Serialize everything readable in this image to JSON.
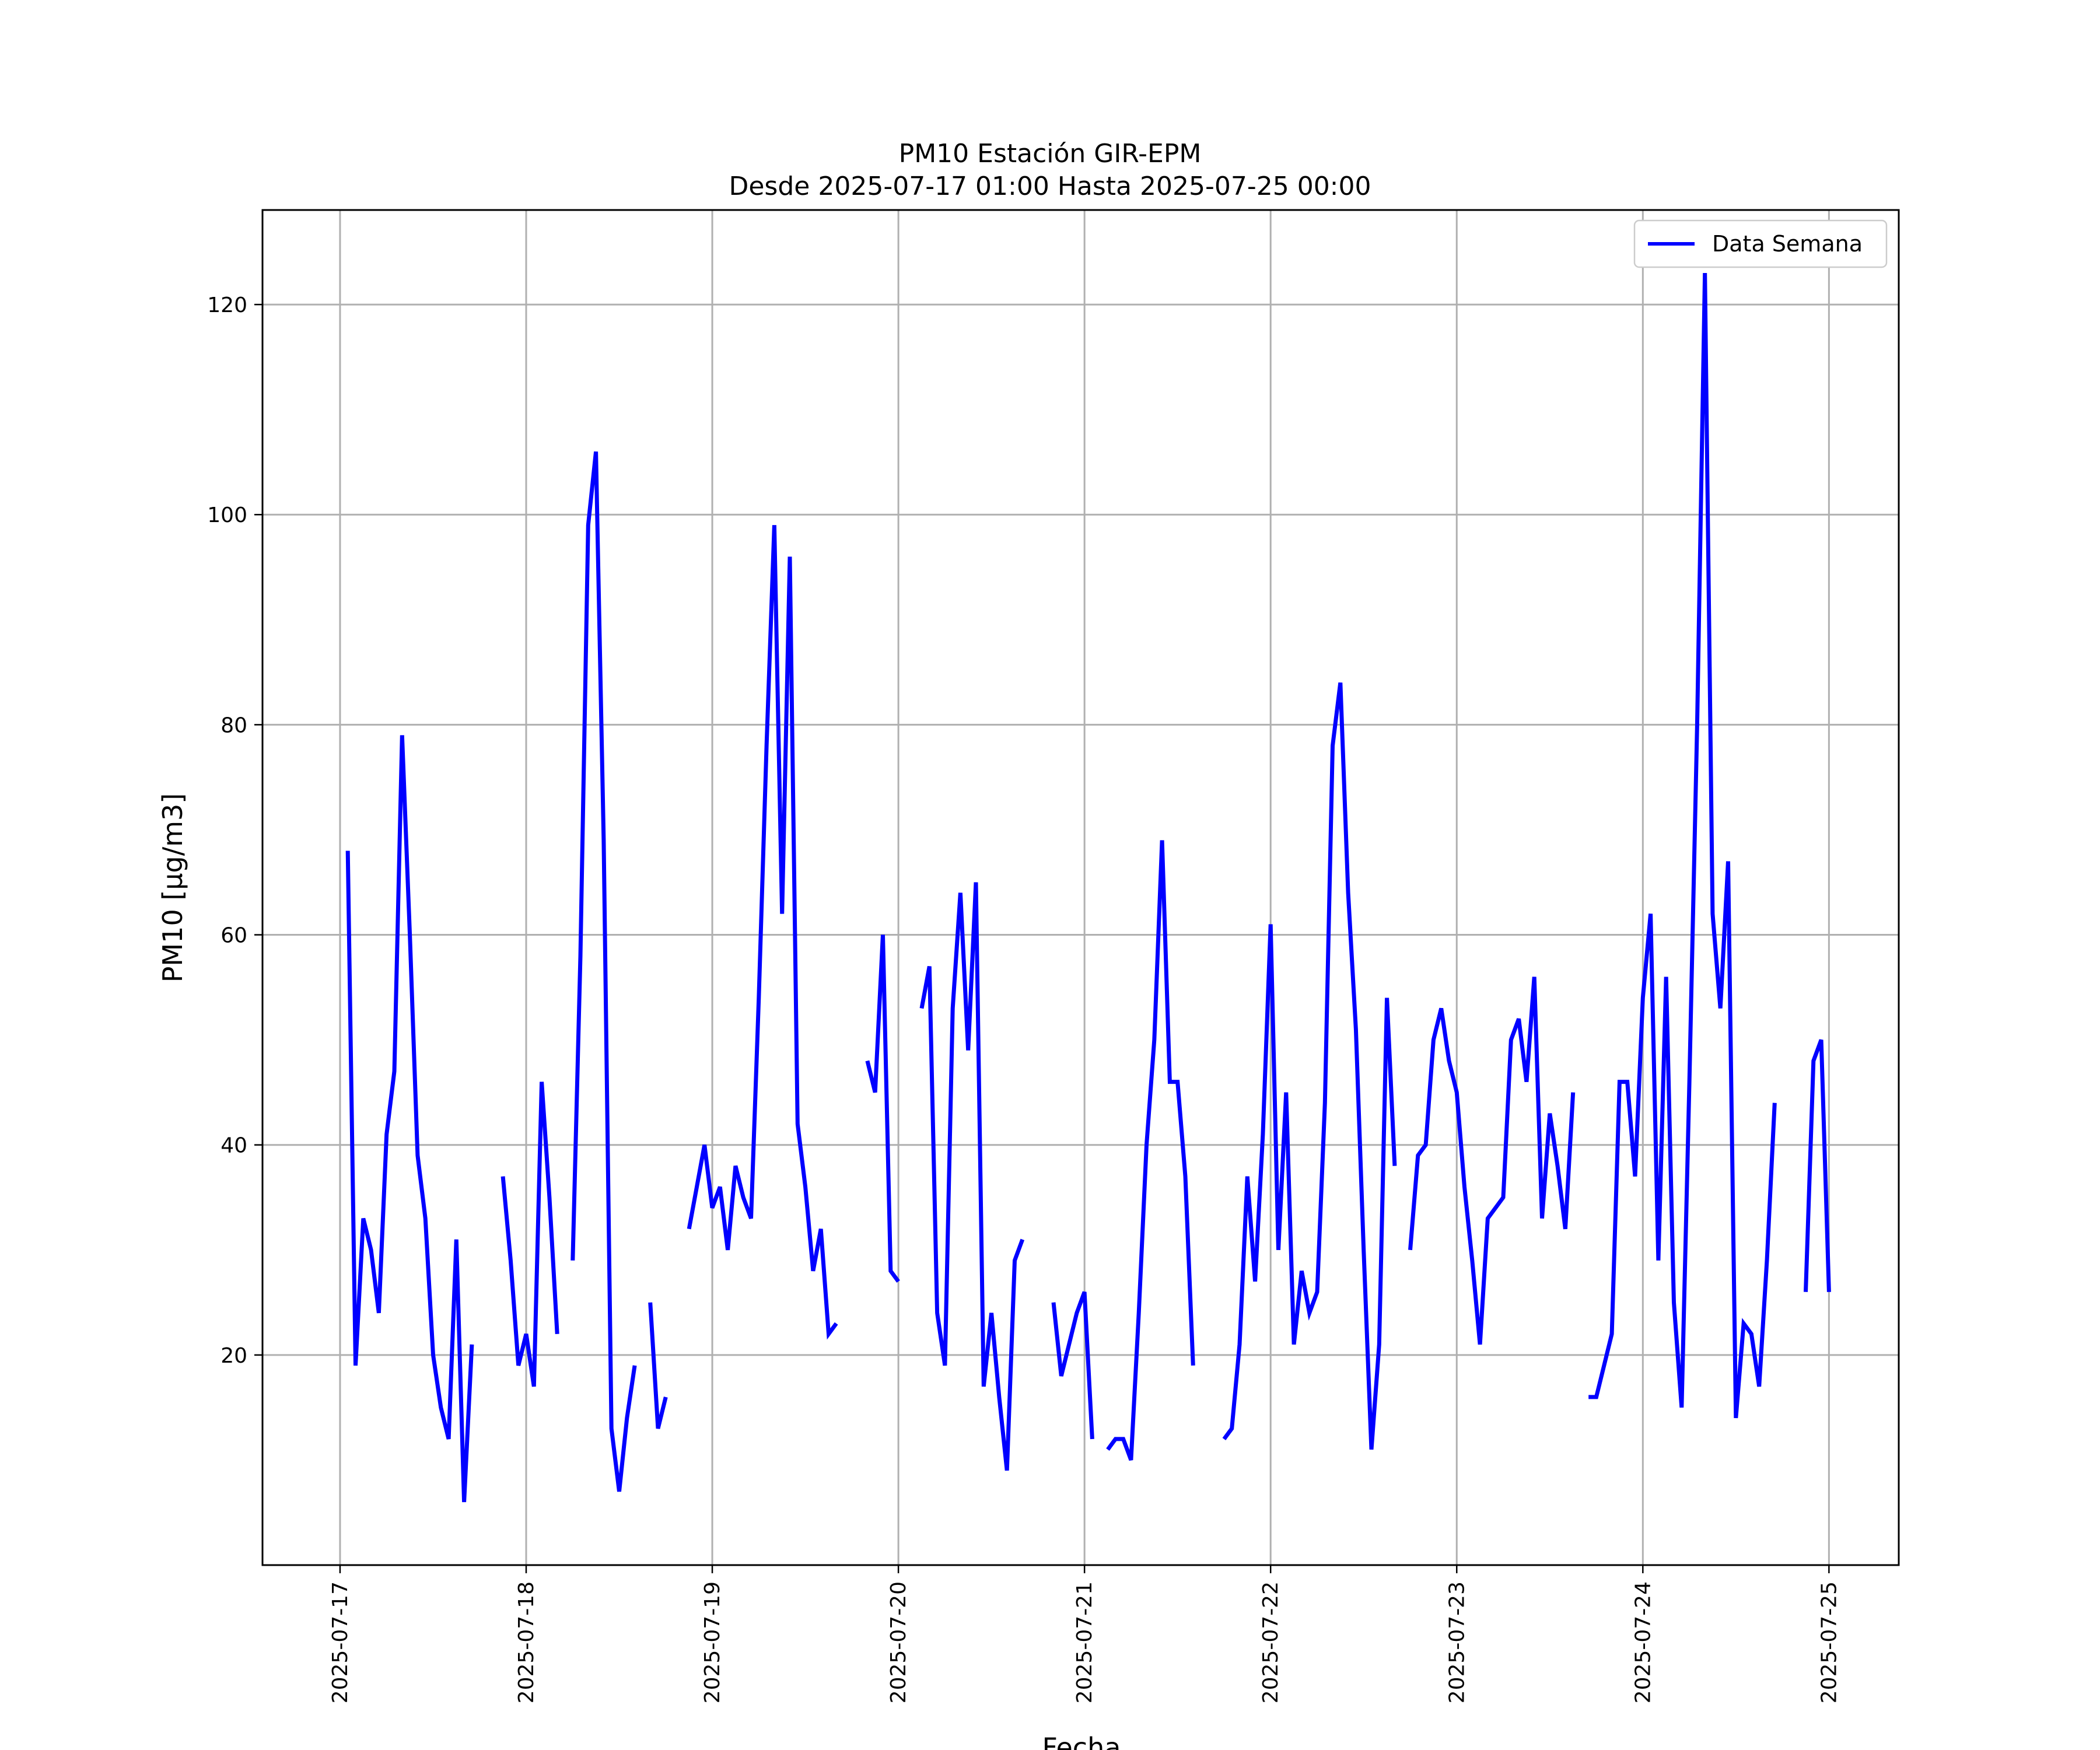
{
  "chart_data": {
    "type": "line",
    "title": "PM10 Estación GIR-EPM",
    "subtitle": "Desde 2025-07-17 01:00 Hasta 2025-07-25 00:00",
    "xlabel": "Fecha",
    "ylabel": "PM10 [μg/m3]",
    "ylim": [
      0,
      129
    ],
    "xlim": [
      "2025-07-16 14:00",
      "2025-07-25 09:00"
    ],
    "x_ticks": [
      "2025-07-17",
      "2025-07-18",
      "2025-07-19",
      "2025-07-20",
      "2025-07-21",
      "2025-07-22",
      "2025-07-23",
      "2025-07-24",
      "2025-07-25"
    ],
    "y_ticks": [
      20,
      40,
      60,
      80,
      100,
      120
    ],
    "grid": true,
    "legend": {
      "position": "top-right",
      "entries": [
        "Data Semana"
      ]
    },
    "series": [
      {
        "name": "Data Semana",
        "color": "#0000ff",
        "segments": [
          [
            [
              "2025-07-17 01:00",
              68
            ],
            [
              "2025-07-17 02:00",
              19
            ],
            [
              "2025-07-17 03:00",
              33
            ],
            [
              "2025-07-17 04:00",
              30
            ],
            [
              "2025-07-17 05:00",
              24
            ],
            [
              "2025-07-17 06:00",
              41
            ],
            [
              "2025-07-17 07:00",
              47
            ],
            [
              "2025-07-17 08:00",
              79
            ],
            [
              "2025-07-17 09:00",
              60
            ],
            [
              "2025-07-17 10:00",
              39
            ],
            [
              "2025-07-17 11:00",
              33
            ],
            [
              "2025-07-17 12:00",
              20
            ],
            [
              "2025-07-17 13:00",
              15
            ],
            [
              "2025-07-17 14:00",
              12
            ],
            [
              "2025-07-17 15:00",
              31
            ],
            [
              "2025-07-17 16:00",
              6
            ],
            [
              "2025-07-17 17:00",
              21
            ]
          ],
          [
            [
              "2025-07-17 21:00",
              37
            ],
            [
              "2025-07-17 22:00",
              29
            ],
            [
              "2025-07-17 23:00",
              19
            ],
            [
              "2025-07-18 00:00",
              22
            ],
            [
              "2025-07-18 01:00",
              17
            ],
            [
              "2025-07-18 02:00",
              46
            ],
            [
              "2025-07-18 03:00",
              35
            ],
            [
              "2025-07-18 04:00",
              22
            ]
          ],
          [
            [
              "2025-07-18 06:00",
              29
            ],
            [
              "2025-07-18 07:00",
              58
            ],
            [
              "2025-07-18 08:00",
              99
            ],
            [
              "2025-07-18 09:00",
              106
            ],
            [
              "2025-07-18 10:00",
              69
            ],
            [
              "2025-07-18 11:00",
              13
            ],
            [
              "2025-07-18 12:00",
              7
            ],
            [
              "2025-07-18 13:00",
              14
            ],
            [
              "2025-07-18 14:00",
              19
            ]
          ],
          [
            [
              "2025-07-18 16:00",
              25
            ],
            [
              "2025-07-18 17:00",
              13
            ],
            [
              "2025-07-18 18:00",
              16
            ]
          ],
          [
            [
              "2025-07-18 21:00",
              32
            ],
            [
              "2025-07-18 22:00",
              36
            ],
            [
              "2025-07-18 23:00",
              40
            ],
            [
              "2025-07-19 00:00",
              34
            ],
            [
              "2025-07-19 01:00",
              36
            ],
            [
              "2025-07-19 02:00",
              30
            ],
            [
              "2025-07-19 03:00",
              38
            ],
            [
              "2025-07-19 04:00",
              35
            ],
            [
              "2025-07-19 05:00",
              33
            ],
            [
              "2025-07-19 06:00",
              54
            ],
            [
              "2025-07-19 07:00",
              78
            ],
            [
              "2025-07-19 08:00",
              99
            ],
            [
              "2025-07-19 09:00",
              62
            ],
            [
              "2025-07-19 10:00",
              96
            ],
            [
              "2025-07-19 11:00",
              42
            ],
            [
              "2025-07-19 12:00",
              36
            ],
            [
              "2025-07-19 13:00",
              28
            ],
            [
              "2025-07-19 14:00",
              32
            ],
            [
              "2025-07-19 15:00",
              22
            ],
            [
              "2025-07-19 16:00",
              23
            ]
          ],
          [
            [
              "2025-07-19 20:00",
              48
            ],
            [
              "2025-07-19 21:00",
              45
            ],
            [
              "2025-07-19 22:00",
              60
            ],
            [
              "2025-07-19 23:00",
              28
            ],
            [
              "2025-07-20 00:00",
              27
            ]
          ],
          [
            [
              "2025-07-20 03:00",
              53
            ],
            [
              "2025-07-20 04:00",
              57
            ],
            [
              "2025-07-20 05:00",
              24
            ],
            [
              "2025-07-20 06:00",
              19
            ],
            [
              "2025-07-20 07:00",
              53
            ],
            [
              "2025-07-20 08:00",
              64
            ],
            [
              "2025-07-20 09:00",
              49
            ],
            [
              "2025-07-20 10:00",
              65
            ],
            [
              "2025-07-20 11:00",
              17
            ],
            [
              "2025-07-20 12:00",
              24
            ],
            [
              "2025-07-20 13:00",
              16
            ],
            [
              "2025-07-20 14:00",
              9
            ],
            [
              "2025-07-20 15:00",
              29
            ],
            [
              "2025-07-20 16:00",
              31
            ]
          ],
          [
            [
              "2025-07-20 20:00",
              25
            ],
            [
              "2025-07-20 21:00",
              18
            ],
            [
              "2025-07-20 22:00",
              21
            ],
            [
              "2025-07-20 23:00",
              24
            ],
            [
              "2025-07-21 00:00",
              26
            ],
            [
              "2025-07-21 01:00",
              12
            ]
          ],
          [
            [
              "2025-07-21 03:00",
              11
            ],
            [
              "2025-07-21 04:00",
              12
            ],
            [
              "2025-07-21 05:00",
              12
            ],
            [
              "2025-07-21 06:00",
              10
            ],
            [
              "2025-07-21 07:00",
              24
            ],
            [
              "2025-07-21 08:00",
              40
            ],
            [
              "2025-07-21 09:00",
              50
            ],
            [
              "2025-07-21 10:00",
              69
            ],
            [
              "2025-07-21 11:00",
              46
            ],
            [
              "2025-07-21 12:00",
              46
            ],
            [
              "2025-07-21 13:00",
              37
            ],
            [
              "2025-07-21 14:00",
              19
            ]
          ],
          [
            [
              "2025-07-21 18:00",
              12
            ],
            [
              "2025-07-21 19:00",
              13
            ],
            [
              "2025-07-21 20:00",
              21
            ],
            [
              "2025-07-21 21:00",
              37
            ],
            [
              "2025-07-21 22:00",
              27
            ],
            [
              "2025-07-21 23:00",
              41
            ],
            [
              "2025-07-22 00:00",
              61
            ],
            [
              "2025-07-22 01:00",
              30
            ],
            [
              "2025-07-22 02:00",
              45
            ],
            [
              "2025-07-22 03:00",
              21
            ],
            [
              "2025-07-22 04:00",
              28
            ],
            [
              "2025-07-22 05:00",
              24
            ],
            [
              "2025-07-22 06:00",
              26
            ],
            [
              "2025-07-22 07:00",
              44
            ],
            [
              "2025-07-22 08:00",
              78
            ],
            [
              "2025-07-22 09:00",
              84
            ],
            [
              "2025-07-22 10:00",
              64
            ],
            [
              "2025-07-22 11:00",
              51
            ],
            [
              "2025-07-22 12:00",
              30
            ],
            [
              "2025-07-22 13:00",
              11
            ],
            [
              "2025-07-22 14:00",
              21
            ],
            [
              "2025-07-22 15:00",
              54
            ],
            [
              "2025-07-22 16:00",
              38
            ]
          ],
          [
            [
              "2025-07-22 18:00",
              30
            ],
            [
              "2025-07-22 19:00",
              39
            ],
            [
              "2025-07-22 20:00",
              40
            ],
            [
              "2025-07-22 21:00",
              50
            ],
            [
              "2025-07-22 22:00",
              53
            ],
            [
              "2025-07-22 23:00",
              48
            ],
            [
              "2025-07-23 00:00",
              45
            ],
            [
              "2025-07-23 01:00",
              36
            ],
            [
              "2025-07-23 02:00",
              29
            ],
            [
              "2025-07-23 03:00",
              21
            ],
            [
              "2025-07-23 04:00",
              33
            ],
            [
              "2025-07-23 05:00",
              34
            ],
            [
              "2025-07-23 06:00",
              35
            ],
            [
              "2025-07-23 07:00",
              50
            ],
            [
              "2025-07-23 08:00",
              52
            ],
            [
              "2025-07-23 09:00",
              46
            ],
            [
              "2025-07-23 10:00",
              56
            ],
            [
              "2025-07-23 11:00",
              33
            ],
            [
              "2025-07-23 12:00",
              43
            ],
            [
              "2025-07-23 13:00",
              38
            ],
            [
              "2025-07-23 14:00",
              32
            ],
            [
              "2025-07-23 15:00",
              45
            ]
          ],
          [
            [
              "2025-07-23 17:00",
              16
            ],
            [
              "2025-07-23 18:00",
              16
            ],
            [
              "2025-07-23 19:00",
              19
            ],
            [
              "2025-07-23 20:00",
              22
            ],
            [
              "2025-07-23 21:00",
              46
            ],
            [
              "2025-07-23 22:00",
              46
            ],
            [
              "2025-07-23 23:00",
              37
            ],
            [
              "2025-07-24 00:00",
              54
            ],
            [
              "2025-07-24 01:00",
              62
            ],
            [
              "2025-07-24 02:00",
              29
            ],
            [
              "2025-07-24 03:00",
              56
            ],
            [
              "2025-07-24 04:00",
              25
            ],
            [
              "2025-07-24 05:00",
              15
            ],
            [
              "2025-07-24 06:00",
              46
            ],
            [
              "2025-07-24 07:00",
              80
            ],
            [
              "2025-07-24 08:00",
              123
            ],
            [
              "2025-07-24 09:00",
              62
            ],
            [
              "2025-07-24 10:00",
              53
            ],
            [
              "2025-07-24 11:00",
              67
            ],
            [
              "2025-07-24 12:00",
              14
            ],
            [
              "2025-07-24 13:00",
              23
            ],
            [
              "2025-07-24 14:00",
              22
            ],
            [
              "2025-07-24 15:00",
              17
            ],
            [
              "2025-07-24 16:00",
              29
            ],
            [
              "2025-07-24 17:00",
              44
            ]
          ],
          [
            [
              "2025-07-24 21:00",
              26
            ],
            [
              "2025-07-24 22:00",
              48
            ],
            [
              "2025-07-24 23:00",
              50
            ],
            [
              "2025-07-25 00:00",
              26
            ]
          ]
        ]
      }
    ]
  }
}
